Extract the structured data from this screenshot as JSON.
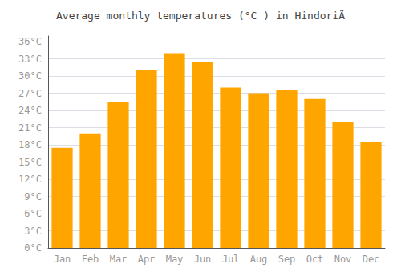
{
  "chart_data": {
    "type": "bar",
    "title": "Average monthly temperatures (°C ) in HindoriÄ",
    "categories": [
      "Jan",
      "Feb",
      "Mar",
      "Apr",
      "May",
      "Jun",
      "Jul",
      "Aug",
      "Sep",
      "Oct",
      "Nov",
      "Dec"
    ],
    "values": [
      17.5,
      20.0,
      25.5,
      31.0,
      34.0,
      32.5,
      28.0,
      27.0,
      27.5,
      26.0,
      22.0,
      18.5
    ],
    "color": "#FFA500",
    "ylim": [
      0,
      37
    ],
    "yticks": [
      {
        "value": 0,
        "label": "0°C"
      },
      {
        "value": 3,
        "label": "3°C"
      },
      {
        "value": 6,
        "label": "6°C"
      },
      {
        "value": 9,
        "label": "9°C"
      },
      {
        "value": 12,
        "label": "12°C"
      },
      {
        "value": 15,
        "label": "15°C"
      },
      {
        "value": 18,
        "label": "18°C"
      },
      {
        "value": 21,
        "label": "21°C"
      },
      {
        "value": 24,
        "label": "24°C"
      },
      {
        "value": 27,
        "label": "27°C"
      },
      {
        "value": 30,
        "label": "30°C"
      },
      {
        "value": 33,
        "label": "33°C"
      },
      {
        "value": 36,
        "label": "36°C"
      }
    ],
    "grid": true
  }
}
